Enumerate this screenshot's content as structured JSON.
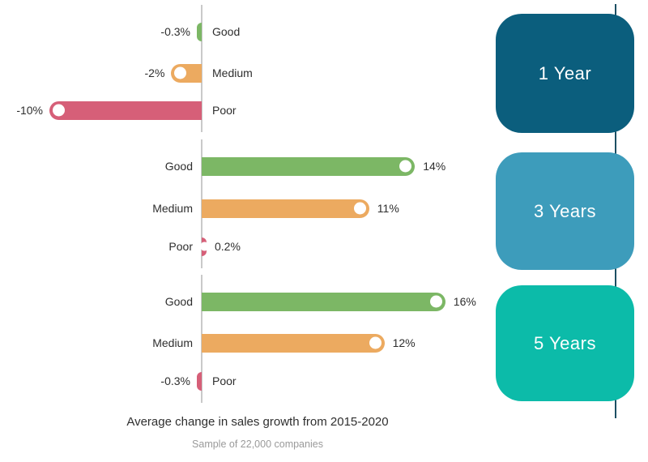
{
  "title": "Average change in sales growth from 2015-2020",
  "subtitle": "Sample of 22,000 companies",
  "colors": {
    "series": {
      "good": "#7cb765",
      "medium": "#ecaa60",
      "poor": "#d65f78"
    },
    "period_box_colors": [
      "#0b5e7d",
      "#3d9cbb",
      "#0cbba9"
    ],
    "axis_line": "#c9c9c9",
    "timeline_line": "#1c4f63",
    "box_text": "#ffffff",
    "label_text": "#2e2e2e",
    "subtitle_text": "#9a9a9a"
  },
  "chart_data": {
    "type": "bar",
    "orientation": "horizontal",
    "unit": "%",
    "title": "Average change in sales growth from 2015-2020",
    "subtitle": "Sample of 22,000 companies",
    "categories": [
      "Good",
      "Medium",
      "Poor"
    ],
    "legend": "none",
    "axis": "shared zero baseline per group, no tick labels",
    "groups": [
      {
        "name": "1 Year",
        "rows": [
          {
            "label": "Good",
            "value": -0.3,
            "display": "-0.3%",
            "dot": false
          },
          {
            "label": "Medium",
            "value": -2,
            "display": "-2%",
            "dot": true
          },
          {
            "label": "Poor",
            "value": -10,
            "display": "-10%",
            "dot": true
          }
        ]
      },
      {
        "name": "3 Years",
        "rows": [
          {
            "label": "Good",
            "value": 14,
            "display": "14%",
            "dot": true
          },
          {
            "label": "Medium",
            "value": 11,
            "display": "11%",
            "dot": true
          },
          {
            "label": "Poor",
            "value": 0.2,
            "display": "0.2%",
            "dot": true
          }
        ]
      },
      {
        "name": "5 Years",
        "rows": [
          {
            "label": "Good",
            "value": 16,
            "display": "16%",
            "dot": true
          },
          {
            "label": "Medium",
            "value": 12,
            "display": "12%",
            "dot": true
          },
          {
            "label": "Poor",
            "value": -0.3,
            "display": "-0.3%",
            "dot": false
          }
        ]
      }
    ]
  }
}
